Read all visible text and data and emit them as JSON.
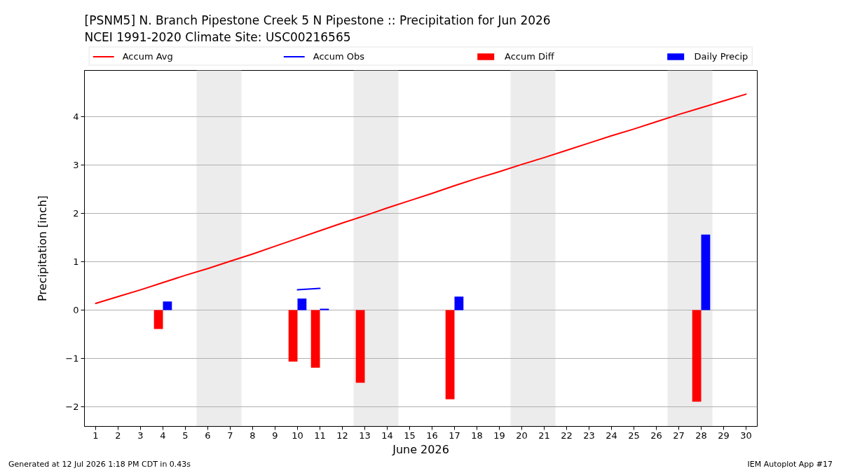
{
  "chart_data": {
    "type": "bar",
    "title": "[PSNM5] N. Branch Pipestone Creek 5 N Pipestone :: Precipitation for Jun 2026",
    "subtitle": "NCEI 1991-2020 Climate Site: USC00216565",
    "xlabel": "June 2026",
    "ylabel": "Precipitation [inch]",
    "x": [
      1,
      2,
      3,
      4,
      5,
      6,
      7,
      8,
      9,
      10,
      11,
      12,
      13,
      14,
      15,
      16,
      17,
      18,
      19,
      20,
      21,
      22,
      23,
      24,
      25,
      26,
      27,
      28,
      29,
      30
    ],
    "series": [
      {
        "name": "Accum Avg",
        "type": "line",
        "color": "#ff0000",
        "values": [
          0.14,
          0.28,
          0.42,
          0.57,
          0.72,
          0.86,
          1.01,
          1.16,
          1.32,
          1.48,
          1.64,
          1.8,
          1.95,
          2.11,
          2.26,
          2.41,
          2.57,
          2.72,
          2.86,
          3.01,
          3.15,
          3.3,
          3.45,
          3.6,
          3.74,
          3.89,
          4.04,
          4.18,
          4.32,
          4.46
        ]
      },
      {
        "name": "Accum Obs",
        "type": "line",
        "color": "#0000ff",
        "values": [
          null,
          null,
          null,
          null,
          null,
          null,
          null,
          null,
          null,
          0.42,
          0.45,
          null,
          null,
          null,
          null,
          null,
          null,
          null,
          null,
          null,
          null,
          null,
          null,
          null,
          null,
          null,
          null,
          null,
          null,
          null
        ]
      },
      {
        "name": "Accum Diff",
        "color": "#ff0000",
        "values": [
          null,
          null,
          null,
          -0.39,
          null,
          null,
          null,
          null,
          null,
          -1.06,
          -1.19,
          null,
          -1.5,
          null,
          null,
          null,
          -1.84,
          null,
          null,
          null,
          null,
          null,
          null,
          null,
          null,
          null,
          null,
          -1.89,
          null,
          null
        ]
      },
      {
        "name": "Daily Precip",
        "color": "#0000ff",
        "values": [
          null,
          null,
          null,
          0.18,
          null,
          null,
          null,
          null,
          null,
          0.24,
          0.03,
          null,
          null,
          null,
          null,
          null,
          0.28,
          null,
          null,
          null,
          null,
          null,
          null,
          null,
          null,
          null,
          null,
          1.56,
          null,
          null
        ]
      }
    ],
    "xlim": [
      0.5,
      30.5
    ],
    "xticks": [
      1,
      2,
      3,
      4,
      5,
      6,
      7,
      8,
      9,
      10,
      11,
      12,
      13,
      14,
      15,
      16,
      17,
      18,
      19,
      20,
      21,
      22,
      23,
      24,
      25,
      26,
      27,
      28,
      29,
      30
    ],
    "ylim": [
      -2.4,
      4.95
    ],
    "yticks": [
      {
        "value": -2,
        "label": "−2"
      },
      {
        "value": -1,
        "label": "−1"
      },
      0,
      1,
      2,
      3,
      4
    ],
    "bands": [
      {
        "axis": "x",
        "from": 5.5,
        "to": 7.5,
        "color": "#ececec"
      },
      {
        "axis": "x",
        "from": 12.5,
        "to": 14.5,
        "color": "#ececec"
      },
      {
        "axis": "x",
        "from": 19.5,
        "to": 21.5,
        "color": "#ececec"
      },
      {
        "axis": "x",
        "from": 26.5,
        "to": 28.5,
        "color": "#ececec"
      }
    ],
    "grid": "y",
    "legend": "top",
    "annotations": [
      "Generated at 12 Jul 2026 1:18 PM CDT in 0.43s",
      "IEM Autoplot App #17"
    ]
  }
}
